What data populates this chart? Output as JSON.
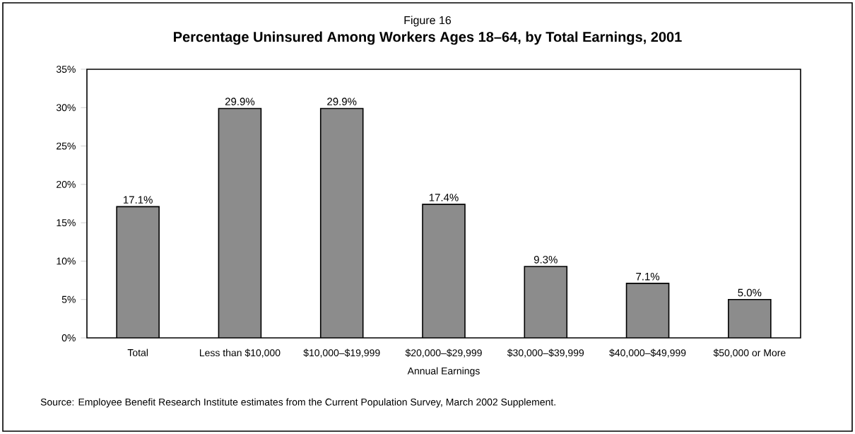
{
  "chart_data": {
    "type": "bar",
    "subtitle": "Figure 16",
    "title": "Percentage Uninsured Among Workers Ages 18–64, by Total Earnings, 2001",
    "xlabel": "Annual Earnings",
    "categories": [
      "Total",
      "Less than $10,000",
      "$10,000–$19,999",
      "$20,000–$29,999",
      "$30,000–$39,999",
      "$40,000–$49,999",
      "$50,000 or More"
    ],
    "values": [
      17.1,
      29.9,
      29.9,
      17.4,
      9.3,
      7.1,
      5.0
    ],
    "value_labels": [
      "17.1%",
      "29.9%",
      "29.9%",
      "17.4%",
      "9.3%",
      "7.1%",
      "5.0%"
    ],
    "color": "#8c8c8c",
    "ylim": [
      0,
      35
    ],
    "yticks": [
      {
        "value": 0,
        "label": "0%"
      },
      {
        "value": 5,
        "label": "5%"
      },
      {
        "value": 10,
        "label": "10%"
      },
      {
        "value": 15,
        "label": "15%"
      },
      {
        "value": 20,
        "label": "20%"
      },
      {
        "value": 25,
        "label": "25%"
      },
      {
        "value": 30,
        "label": "30%"
      },
      {
        "value": 35,
        "label": "35%"
      }
    ],
    "grid": false,
    "annotations": [
      "Source: Employee Benefit Research Institute estimates from the Current Population Survey, March 2002 Supplement."
    ]
  }
}
